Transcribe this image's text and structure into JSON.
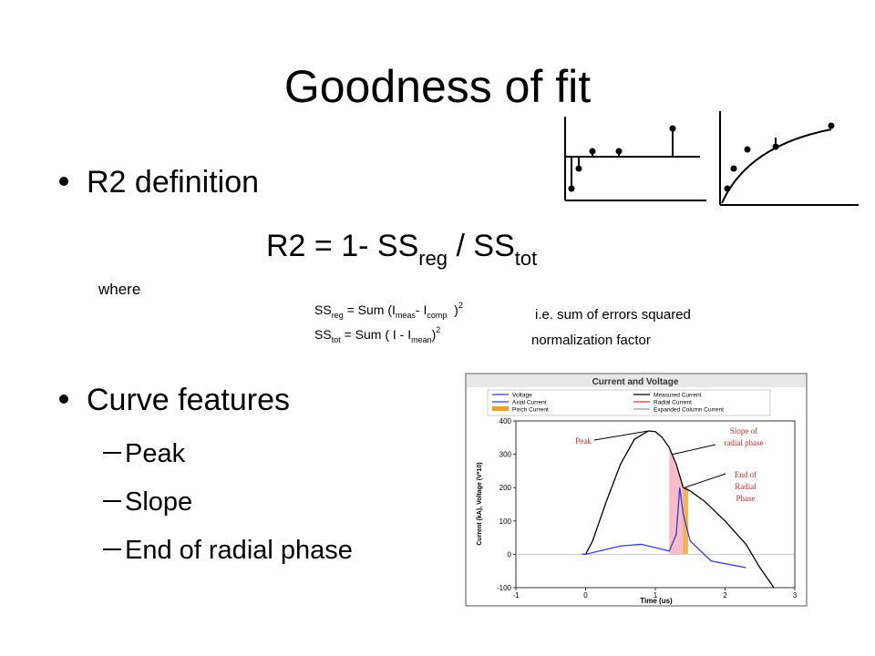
{
  "title": "Goodness of fit",
  "bullet_1": "R2 definition",
  "formula": [
    "R2 = 1- SS",
    "reg",
    " / SS",
    "tot"
  ],
  "where": "where",
  "ss_reg": [
    "SS",
    "reg",
    " = Sum (I",
    "meas",
    "- I",
    "comp",
    "  )",
    "2"
  ],
  "ss_tot": [
    "SS",
    "tot",
    " = Sum ( I - I",
    "mean",
    ")",
    "2"
  ],
  "notes": [
    "i.e. sum of errors squared",
    "normalization factor"
  ],
  "bullet_2": "Curve features",
  "sub_bullets": [
    "Peak",
    "Slope",
    "End of radial phase"
  ],
  "inset_chart": {
    "type": "line",
    "title": "Current and Voltage",
    "legend": [
      {
        "name": "Voltage",
        "color": "#3a3ad8"
      },
      {
        "name": "Axial Current",
        "color": "#3a3ad8"
      },
      {
        "name": "Pinch Current",
        "color": "#f0a020"
      },
      {
        "name": "Measured Current",
        "color": "#000000"
      },
      {
        "name": "Radial Current",
        "color": "#e03030"
      },
      {
        "name": "Expanded Column Current",
        "color": "#999999"
      }
    ],
    "x_label": "Time (us)",
    "y_label": "Current (kA), Voltage (V*10)",
    "xlim": [
      -1,
      3
    ],
    "xticks": [
      -1,
      0,
      1,
      2,
      3
    ],
    "ylim": [
      -100,
      400
    ],
    "yticks": [
      -100,
      0,
      100,
      200,
      300,
      400
    ],
    "series": [
      {
        "name": "Measured Current",
        "color": "#000000",
        "x": [
          -0.05,
          0,
          0.1,
          0.3,
          0.5,
          0.7,
          0.9,
          1.0,
          1.1,
          1.2,
          1.3,
          1.4,
          1.5,
          1.7,
          2.0,
          2.3,
          2.5,
          2.7
        ],
        "values": [
          0,
          0,
          40,
          160,
          270,
          345,
          370,
          368,
          350,
          320,
          270,
          200,
          190,
          160,
          100,
          30,
          -40,
          -100
        ]
      },
      {
        "name": "Voltage",
        "color": "#3a3ad8",
        "x": [
          -0.05,
          0,
          0.2,
          0.5,
          0.8,
          1.0,
          1.2,
          1.3,
          1.35,
          1.4,
          1.5,
          1.8,
          2.3
        ],
        "values": [
          0,
          0,
          10,
          25,
          30,
          20,
          10,
          60,
          200,
          120,
          40,
          -20,
          -40
        ]
      }
    ],
    "annotations": {
      "peak": [
        "Peak"
      ],
      "slope": [
        "Slope of",
        "radial phase"
      ],
      "end": [
        "End of",
        "Radial",
        "Phase"
      ]
    }
  }
}
